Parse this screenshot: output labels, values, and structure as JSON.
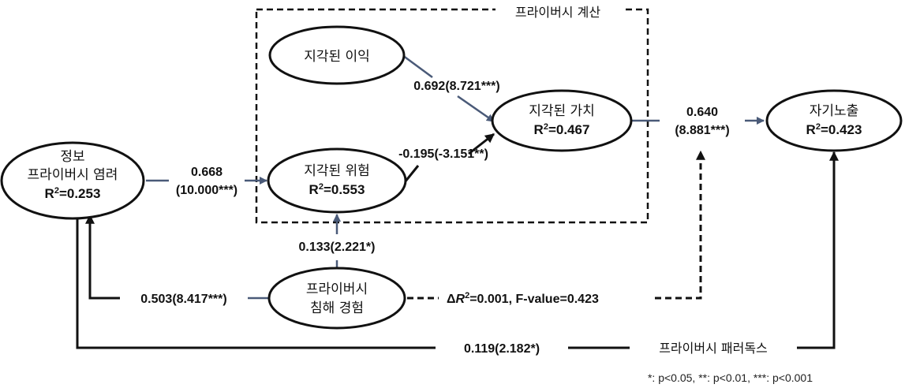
{
  "nodes": {
    "concern": {
      "lines": [
        "정보",
        "프라이버시 염려"
      ],
      "r2": "=0.253"
    },
    "experience": {
      "lines": [
        "프라이버시",
        "침해 경험"
      ]
    },
    "benefit": {
      "lines": [
        "지각된 이익"
      ]
    },
    "risk": {
      "lines": [
        "지각된 위험"
      ],
      "r2": "=0.553"
    },
    "value": {
      "lines": [
        "지각된 가치"
      ],
      "r2": "=0.467"
    },
    "disclosure": {
      "lines": [
        "자기노출"
      ],
      "r2": "=0.423"
    }
  },
  "r2_prefix": "R",
  "r2_sup": "2",
  "box_label": "프라이버시 계산",
  "paths": {
    "concern_risk": [
      "0.668",
      "(10.000***)"
    ],
    "exp_risk": "0.133(2.221*)",
    "benefit_value": "0.692(8.721***)",
    "risk_value": "-0.195(-3.151**)",
    "value_disclosure": [
      "0.640",
      "(8.881***)"
    ],
    "exp_concern": "0.503(8.417***)",
    "moderation": {
      "delta": "Δ",
      "r": "R",
      "sup": "2",
      "rest": "=0.001,  F-value=0.423"
    },
    "concern_disclosure": "0.119(2.182*)"
  },
  "paradox_label": "프라이버시 패러독스",
  "note": "*: p<0.05, **: p<0.01, ***: p<0.001"
}
